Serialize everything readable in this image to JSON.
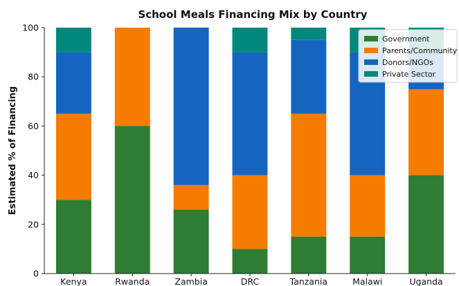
{
  "chart_data": {
    "type": "bar",
    "stacked": true,
    "title": "School Meals Financing Mix by Country",
    "xlabel": "",
    "ylabel": "Estimated % of Financing",
    "ylim": [
      0,
      100
    ],
    "yticks": [
      0,
      20,
      40,
      60,
      80,
      100
    ],
    "grid": false,
    "legend_position": "top-right",
    "categories": [
      "Kenya",
      "Rwanda",
      "Zambia",
      "DRC",
      "Tanzania",
      "Malawi",
      "Uganda"
    ],
    "series": [
      {
        "name": "Government",
        "color": "#2e7d32",
        "values": [
          30,
          60,
          26,
          10,
          15,
          15,
          40
        ]
      },
      {
        "name": "Parents/Community",
        "color": "#f57c00",
        "values": [
          35,
          40,
          10,
          30,
          50,
          25,
          35
        ]
      },
      {
        "name": "Donors/NGOs",
        "color": "#1565c0",
        "values": [
          25,
          0,
          64,
          50,
          30,
          50,
          15
        ]
      },
      {
        "name": "Private Sector",
        "color": "#00897b",
        "values": [
          10,
          0,
          0,
          10,
          5,
          10,
          10
        ]
      }
    ]
  }
}
